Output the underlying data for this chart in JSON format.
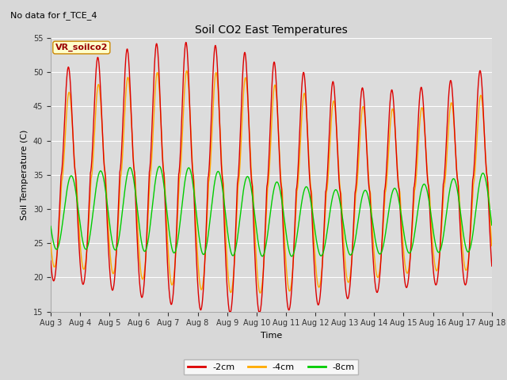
{
  "title": "Soil CO2 East Temperatures",
  "subtitle": "No data for f_TCE_4",
  "xlabel": "Time",
  "ylabel": "Soil Temperature (C)",
  "ylim": [
    15,
    55
  ],
  "xlim_days": [
    3,
    18
  ],
  "legend_label": "VR_soilco2",
  "fig_bg_color": "#d8d8d8",
  "plot_bg_color": "#dcdcdc",
  "series": {
    "2cm": {
      "color": "#dd0000",
      "label": "-2cm"
    },
    "4cm": {
      "color": "#ffaa00",
      "label": "-4cm"
    },
    "8cm": {
      "color": "#00cc00",
      "label": "-8cm"
    }
  },
  "x_tick_labels": [
    "Aug 3",
    "Aug 4",
    "Aug 5",
    "Aug 6",
    "Aug 7",
    "Aug 8",
    "Aug 9",
    "Aug 10",
    "Aug 11",
    "Aug 12",
    "Aug 13",
    "Aug 14",
    "Aug 15",
    "Aug 16",
    "Aug 17",
    "Aug 18"
  ],
  "start_day": 3,
  "end_day": 18
}
